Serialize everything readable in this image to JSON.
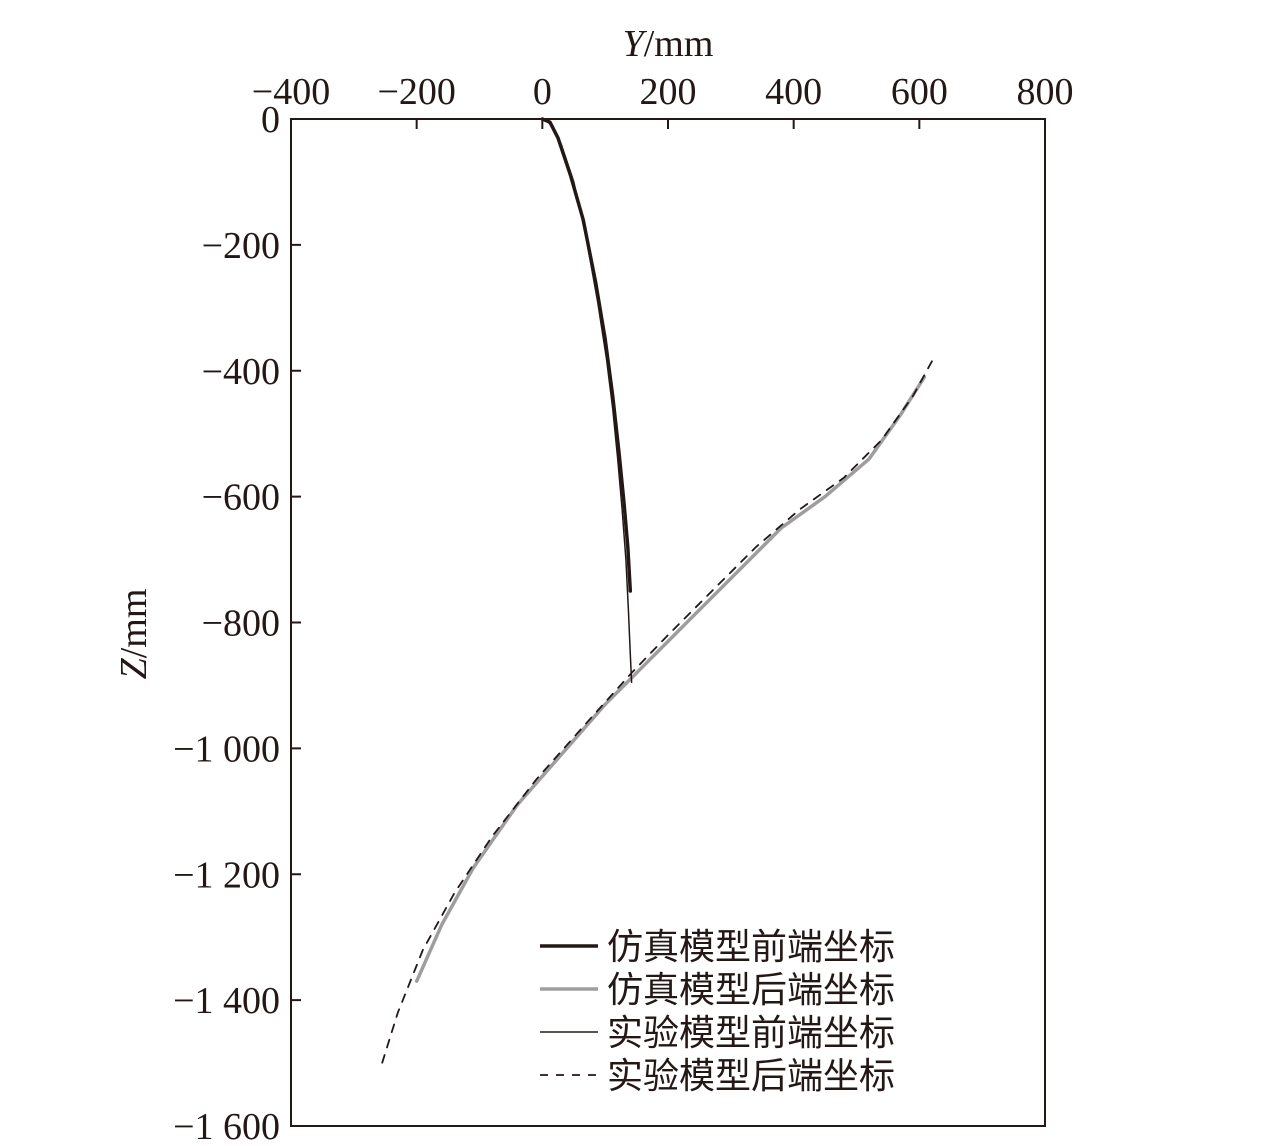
{
  "chart_data": {
    "type": "line",
    "xlabel_var": "Y",
    "xlabel_unit": "/mm",
    "ylabel_var": "Z",
    "ylabel_unit": "/mm",
    "xlim": [
      -400,
      800
    ],
    "ylim": [
      -1600,
      0
    ],
    "x_axis_position": "top",
    "grid": false,
    "legend_position": "bottom-right",
    "x_ticks": [
      {
        "value": -400,
        "label": "−400"
      },
      {
        "value": -200,
        "label": "−200"
      },
      {
        "value": 0,
        "label": "0"
      },
      {
        "value": 200,
        "label": "200"
      },
      {
        "value": 400,
        "label": "400"
      },
      {
        "value": 600,
        "label": "600"
      },
      {
        "value": 800,
        "label": "800"
      }
    ],
    "y_ticks": [
      {
        "value": 0,
        "label": "0"
      },
      {
        "value": -200,
        "label": "−200"
      },
      {
        "value": -400,
        "label": "−400"
      },
      {
        "value": -600,
        "label": "−600"
      },
      {
        "value": -800,
        "label": "−800"
      },
      {
        "value": -1000,
        "label": "−1 000"
      },
      {
        "value": -1200,
        "label": "−1 200"
      },
      {
        "value": -1400,
        "label": "−1 400"
      },
      {
        "value": -1600,
        "label": "−1 600"
      }
    ],
    "series": [
      {
        "name": "仿真模型前端坐标",
        "color": "#231815",
        "width": 3.5,
        "dash": "",
        "points": [
          [
            0,
            0
          ],
          [
            12,
            -5
          ],
          [
            25,
            -30
          ],
          [
            45,
            -90
          ],
          [
            65,
            -160
          ],
          [
            85,
            -260
          ],
          [
            100,
            -350
          ],
          [
            112,
            -440
          ],
          [
            122,
            -530
          ],
          [
            130,
            -610
          ],
          [
            136,
            -680
          ],
          [
            140,
            -750
          ]
        ]
      },
      {
        "name": "仿真模型后端坐标",
        "color": "#9e9e9e",
        "width": 3.5,
        "dash": "",
        "points": [
          [
            608,
            -410
          ],
          [
            570,
            -470
          ],
          [
            520,
            -540
          ],
          [
            450,
            -600
          ],
          [
            380,
            -650
          ],
          [
            310,
            -720
          ],
          [
            240,
            -790
          ],
          [
            170,
            -860
          ],
          [
            100,
            -930
          ],
          [
            30,
            -1010
          ],
          [
            -40,
            -1090
          ],
          [
            -110,
            -1190
          ],
          [
            -160,
            -1280
          ],
          [
            -200,
            -1370
          ]
        ]
      },
      {
        "name": "实验模型前端坐标",
        "color": "#231815",
        "width": 1.5,
        "dash": "",
        "points": [
          [
            2,
            0
          ],
          [
            15,
            -10
          ],
          [
            30,
            -40
          ],
          [
            50,
            -100
          ],
          [
            70,
            -190
          ],
          [
            88,
            -290
          ],
          [
            102,
            -380
          ],
          [
            112,
            -460
          ],
          [
            120,
            -540
          ],
          [
            127,
            -620
          ],
          [
            133,
            -700
          ],
          [
            137,
            -780
          ],
          [
            140,
            -850
          ],
          [
            142,
            -895
          ]
        ]
      },
      {
        "name": "实验模型后端坐标",
        "color": "#231815",
        "width": 1.8,
        "dash": "8,8",
        "points": [
          [
            620,
            -385
          ],
          [
            590,
            -440
          ],
          [
            540,
            -510
          ],
          [
            480,
            -570
          ],
          [
            410,
            -620
          ],
          [
            340,
            -680
          ],
          [
            270,
            -750
          ],
          [
            200,
            -820
          ],
          [
            142,
            -880
          ],
          [
            70,
            -960
          ],
          [
            -10,
            -1050
          ],
          [
            -80,
            -1140
          ],
          [
            -140,
            -1230
          ],
          [
            -190,
            -1320
          ],
          [
            -230,
            -1420
          ],
          [
            -255,
            -1500
          ]
        ]
      }
    ]
  }
}
